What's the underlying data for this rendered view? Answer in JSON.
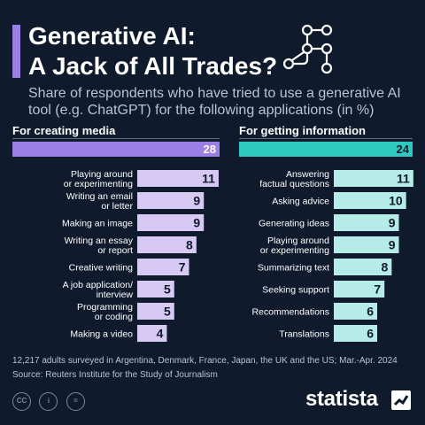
{
  "title_lines": [
    "Generative AI:",
    "A Jack of All Trades?"
  ],
  "subtitle": "Share of respondents who have tried to use a generative AI tool (e.g. ChatGPT) for the following applications (in %)",
  "chart_data": [
    {
      "type": "bar",
      "orientation": "horizontal",
      "title": "For creating media",
      "total": 28,
      "categories": [
        "Playing around\nor experimenting",
        "Writing an email\nor letter",
        "Making an image",
        "Writing an essay\nor report",
        "Creative writing",
        "A job application/\ninterview",
        "Programming\nor coding",
        "Making a video"
      ],
      "values": [
        11,
        9,
        9,
        8,
        7,
        5,
        5,
        4
      ],
      "color": "#d8c8f4",
      "total_color": "#9b7fe6",
      "xlim": [
        0,
        28
      ]
    },
    {
      "type": "bar",
      "orientation": "horizontal",
      "title": "For getting information",
      "total": 24,
      "categories": [
        "Answering\nfactual questions",
        "Asking advice",
        "Generating ideas",
        "Playing around\nor experimenting",
        "Summarizing text",
        "Seeking support",
        "Recommendations",
        "Translations"
      ],
      "values": [
        11,
        10,
        9,
        9,
        8,
        7,
        6,
        6
      ],
      "color": "#b6ece8",
      "total_color": "#2fc9bf",
      "xlim": [
        0,
        24
      ]
    }
  ],
  "footnote": [
    "12,217 adults surveyed in Argentina, Denmark, France, Japan, the UK and the US; Mar.-Apr. 2024",
    "Source: Reuters Institute for the Study of Journalism"
  ],
  "license_icons": [
    "CC",
    "i",
    "="
  ],
  "brand": "statista",
  "colors": {
    "background": "#0f1b2d",
    "accent_purple": "#9b7fe6",
    "accent_teal": "#2fc9bf",
    "text_muted": "#b9c3d3"
  }
}
